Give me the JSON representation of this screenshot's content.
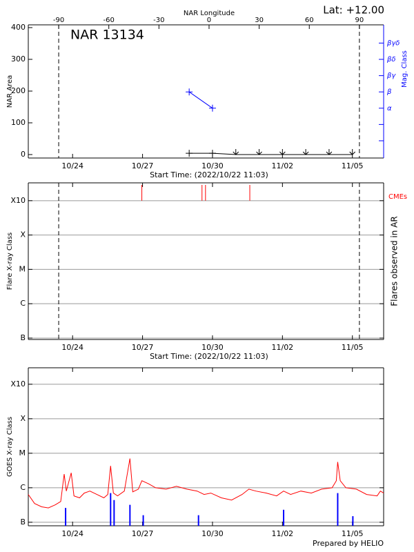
{
  "chart_data": [
    {
      "type": "line",
      "title": "NAR 13134",
      "annotation": "Lat: +12.00",
      "x_label": "Start Time: (2022/10/22 11:03)",
      "y_label": "NAR Area",
      "y2_label": "Mag. Class",
      "x2_label": "NAR Longitude",
      "xlim": [
        22.1,
        37.34
      ],
      "xticks": [
        {
          "value": 24,
          "label": "10/24"
        },
        {
          "value": 27,
          "label": "10/27"
        },
        {
          "value": 30,
          "label": "10/30"
        },
        {
          "value": 33,
          "label": "11/02"
        },
        {
          "value": 36,
          "label": "11/05"
        }
      ],
      "ylim": [
        -10.9,
        408.7
      ],
      "yticks": [
        0,
        100,
        200,
        300,
        400
      ],
      "y2lim": [
        -0.06,
        8.12
      ],
      "y2ticks": [
        {
          "value": 3,
          "label": "α"
        },
        {
          "value": 4,
          "label": "β"
        },
        {
          "value": 5,
          "label": "βγ"
        },
        {
          "value": 6,
          "label": "βδ"
        },
        {
          "value": 7,
          "label": "βγδ"
        }
      ],
      "y2_minor_ticks": [
        1,
        2
      ],
      "y2_color": "#0000ff",
      "x2lim": [
        -108.2,
        104.5
      ],
      "x2ticks": [
        -90,
        -60,
        -30,
        0,
        30,
        60,
        90
      ],
      "series": [
        {
          "color": "#000000",
          "x": [
            29,
            30,
            31,
            32,
            33,
            34,
            35,
            36
          ],
          "values": [
            4,
            4,
            0,
            0,
            0,
            0,
            0,
            0
          ],
          "markers": [
            "plus",
            "plus",
            "arrow",
            "arrow",
            "arrow",
            "arrow",
            "arrow",
            "arrow"
          ]
        },
        {
          "color": "#0000ff",
          "axis": "y2",
          "x": [
            29,
            30
          ],
          "values": [
            4,
            3
          ],
          "markers": [
            "plus",
            "plus"
          ]
        }
      ]
    },
    {
      "type": "event",
      "x_label": "Start Time: (2022/10/22 11:03)",
      "y_label": "Flare X-ray Class",
      "y2_label": "Flares observed in AR",
      "xlim": [
        22.1,
        37.34
      ],
      "xticks": [
        {
          "value": 24,
          "label": "10/24"
        },
        {
          "value": 27,
          "label": "10/27"
        },
        {
          "value": 30,
          "label": "10/30"
        },
        {
          "value": 33,
          "label": "11/02"
        },
        {
          "value": 36,
          "label": "11/05"
        }
      ],
      "log_y": true,
      "ylim": [
        9.1e-08,
        0.0033
      ],
      "yticks": [
        {
          "value": 1e-07,
          "label": "B"
        },
        {
          "value": 1e-06,
          "label": "C"
        },
        {
          "value": 1e-05,
          "label": "M"
        },
        {
          "value": 0.0001,
          "label": "X"
        },
        {
          "value": 0.001,
          "label": "X10"
        }
      ],
      "grid": true,
      "cme_label": "CMEs",
      "cme_color": "#ff0000",
      "cme_times": [
        26.97,
        29.55,
        29.7,
        31.6
      ]
    },
    {
      "type": "line",
      "y_label": "GOES X-ray Class",
      "footer": "Prepared by HELIO",
      "xlim": [
        22.1,
        37.34
      ],
      "xticks": [
        {
          "value": 24,
          "label": "10/24"
        },
        {
          "value": 27,
          "label": "10/27"
        },
        {
          "value": 30,
          "label": "10/30"
        },
        {
          "value": 33,
          "label": "11/02"
        },
        {
          "value": 36,
          "label": "11/05"
        }
      ],
      "log_y": true,
      "ylim": [
        7.9e-08,
        0.003
      ],
      "yticks": [
        {
          "value": 1e-07,
          "label": "B"
        },
        {
          "value": 1e-06,
          "label": "C"
        },
        {
          "value": 1e-05,
          "label": "M"
        },
        {
          "value": 0.0001,
          "label": "X"
        },
        {
          "value": 0.001,
          "label": "X10"
        }
      ],
      "grid": true,
      "series": [
        {
          "color": "#ff0000",
          "x": [
            22.1,
            22.37,
            22.67,
            22.96,
            23.26,
            23.49,
            23.64,
            23.73,
            23.94,
            24.06,
            24.3,
            24.5,
            24.74,
            25.04,
            25.34,
            25.51,
            25.63,
            25.75,
            25.93,
            26.22,
            26.46,
            26.58,
            26.82,
            26.97,
            27.26,
            27.56,
            28.01,
            28.45,
            28.9,
            29.34,
            29.64,
            29.93,
            30.38,
            30.82,
            31.27,
            31.56,
            31.86,
            32.31,
            32.75,
            33.05,
            33.35,
            33.79,
            34.24,
            34.68,
            35.13,
            35.31,
            35.37,
            35.48,
            35.72,
            36.17,
            36.61,
            37.06,
            37.2,
            37.34
          ],
          "values": [
            6.4e-07,
            3.5e-07,
            2.8e-07,
            2.6e-07,
            3.2e-07,
            4e-07,
            2.5e-06,
            8e-07,
            2.7e-06,
            5.8e-07,
            5.1e-07,
            7e-07,
            8e-07,
            6.4e-07,
            5.1e-07,
            6.4e-07,
            4.3e-06,
            7e-07,
            5.8e-07,
            8e-07,
            7e-06,
            7.6e-07,
            9.1e-07,
            1.6e-06,
            1.3e-06,
            1e-06,
            9.1e-07,
            1.1e-06,
            9.1e-07,
            8e-07,
            6.4e-07,
            7e-07,
            5.1e-07,
            4.4e-07,
            6.4e-07,
            9.1e-07,
            8e-07,
            7e-07,
            5.8e-07,
            8e-07,
            6.4e-07,
            8e-07,
            7e-07,
            9.1e-07,
            1e-06,
            1.6e-06,
            5.6e-06,
            1.6e-06,
            1e-06,
            9.1e-07,
            6.4e-07,
            5.8e-07,
            8e-07,
            7e-07
          ]
        },
        {
          "color": "#0000ff",
          "style": "stem",
          "x": [
            23.7,
            25.63,
            25.78,
            26.46,
            27.03,
            29.4,
            33.05,
            35.37,
            36.02
          ],
          "values": [
            2.6e-07,
            7e-07,
            4.4e-07,
            3.2e-07,
            1.6e-07,
            1.6e-07,
            2.3e-07,
            7e-07,
            1.5e-07
          ]
        }
      ]
    }
  ]
}
